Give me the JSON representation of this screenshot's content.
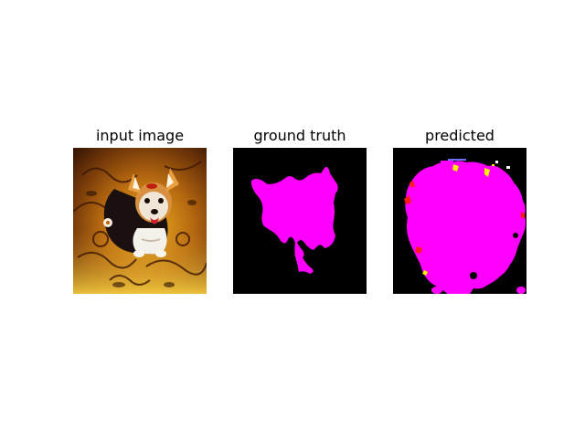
{
  "figure": {
    "panels": [
      {
        "title": "input image",
        "content": "yorkshire terrier photo"
      },
      {
        "title": "ground truth",
        "content": "segmentation mask"
      },
      {
        "title": "predicted",
        "content": "segmentation mask"
      }
    ]
  },
  "colors": {
    "background": "#ffffff",
    "mask_background": "#000000",
    "mask_foreground": "#ff00ff",
    "mask_error_red": "#ff1a1a",
    "mask_error_yellow": "#ffee00"
  }
}
